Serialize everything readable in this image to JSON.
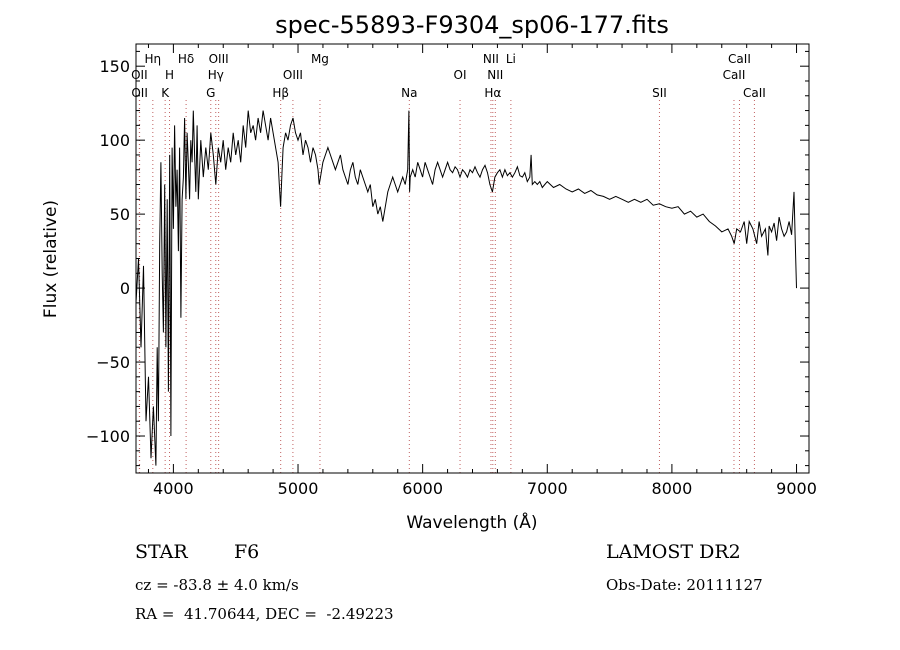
{
  "chart_data": {
    "type": "line",
    "title": "spec-55893-F9304_sp06-177.fits",
    "xlabel": "Wavelength (Å)",
    "ylabel": "Flux (relative)",
    "xlim": [
      3700,
      9100
    ],
    "ylim": [
      -125,
      165
    ],
    "xticks": [
      4000,
      5000,
      6000,
      7000,
      8000,
      9000
    ],
    "yticks": [
      -100,
      -50,
      0,
      50,
      100,
      150
    ],
    "series": [
      {
        "points": [
          [
            3700,
            -10
          ],
          [
            3720,
            20
          ],
          [
            3740,
            -40
          ],
          [
            3760,
            15
          ],
          [
            3780,
            -90
          ],
          [
            3800,
            -60
          ],
          [
            3820,
            -115
          ],
          [
            3840,
            -80
          ],
          [
            3860,
            -120
          ],
          [
            3870,
            -40
          ],
          [
            3880,
            -90
          ],
          [
            3890,
            30
          ],
          [
            3900,
            85
          ],
          [
            3910,
            10
          ],
          [
            3920,
            -30
          ],
          [
            3930,
            70
          ],
          [
            3940,
            -40
          ],
          [
            3950,
            60
          ],
          [
            3960,
            -70
          ],
          [
            3970,
            90
          ],
          [
            3980,
            -100
          ],
          [
            3990,
            95
          ],
          [
            4000,
            40
          ],
          [
            4010,
            110
          ],
          [
            4020,
            55
          ],
          [
            4030,
            80
          ],
          [
            4040,
            25
          ],
          [
            4050,
            95
          ],
          [
            4060,
            -20
          ],
          [
            4070,
            60
          ],
          [
            4080,
            75
          ],
          [
            4090,
            115
          ],
          [
            4100,
            60
          ],
          [
            4110,
            105
          ],
          [
            4120,
            85
          ],
          [
            4130,
            60
          ],
          [
            4140,
            100
          ],
          [
            4150,
            85
          ],
          [
            4160,
            120
          ],
          [
            4170,
            90
          ],
          [
            4180,
            65
          ],
          [
            4190,
            110
          ],
          [
            4200,
            60
          ],
          [
            4220,
            100
          ],
          [
            4240,
            75
          ],
          [
            4260,
            95
          ],
          [
            4280,
            80
          ],
          [
            4300,
            105
          ],
          [
            4320,
            90
          ],
          [
            4340,
            70
          ],
          [
            4360,
            95
          ],
          [
            4380,
            85
          ],
          [
            4400,
            100
          ],
          [
            4420,
            80
          ],
          [
            4440,
            95
          ],
          [
            4460,
            85
          ],
          [
            4480,
            105
          ],
          [
            4500,
            90
          ],
          [
            4520,
            100
          ],
          [
            4540,
            85
          ],
          [
            4560,
            110
          ],
          [
            4580,
            95
          ],
          [
            4600,
            120
          ],
          [
            4620,
            105
          ],
          [
            4640,
            110
          ],
          [
            4660,
            100
          ],
          [
            4680,
            115
          ],
          [
            4700,
            105
          ],
          [
            4720,
            120
          ],
          [
            4740,
            110
          ],
          [
            4760,
            100
          ],
          [
            4780,
            115
          ],
          [
            4800,
            105
          ],
          [
            4820,
            95
          ],
          [
            4840,
            85
          ],
          [
            4850,
            70
          ],
          [
            4860,
            55
          ],
          [
            4870,
            75
          ],
          [
            4880,
            95
          ],
          [
            4900,
            105
          ],
          [
            4920,
            100
          ],
          [
            4940,
            110
          ],
          [
            4960,
            115
          ],
          [
            4980,
            105
          ],
          [
            5000,
            100
          ],
          [
            5020,
            105
          ],
          [
            5040,
            90
          ],
          [
            5060,
            100
          ],
          [
            5080,
            95
          ],
          [
            5100,
            85
          ],
          [
            5120,
            95
          ],
          [
            5140,
            90
          ],
          [
            5160,
            80
          ],
          [
            5170,
            70
          ],
          [
            5180,
            75
          ],
          [
            5200,
            85
          ],
          [
            5220,
            90
          ],
          [
            5240,
            95
          ],
          [
            5260,
            90
          ],
          [
            5280,
            85
          ],
          [
            5300,
            80
          ],
          [
            5320,
            85
          ],
          [
            5340,
            90
          ],
          [
            5360,
            80
          ],
          [
            5380,
            75
          ],
          [
            5400,
            70
          ],
          [
            5420,
            80
          ],
          [
            5440,
            85
          ],
          [
            5460,
            75
          ],
          [
            5480,
            70
          ],
          [
            5500,
            80
          ],
          [
            5520,
            75
          ],
          [
            5540,
            70
          ],
          [
            5560,
            65
          ],
          [
            5580,
            70
          ],
          [
            5600,
            55
          ],
          [
            5620,
            60
          ],
          [
            5640,
            50
          ],
          [
            5660,
            55
          ],
          [
            5680,
            45
          ],
          [
            5700,
            55
          ],
          [
            5720,
            65
          ],
          [
            5740,
            70
          ],
          [
            5760,
            75
          ],
          [
            5780,
            70
          ],
          [
            5800,
            65
          ],
          [
            5820,
            70
          ],
          [
            5840,
            75
          ],
          [
            5860,
            70
          ],
          [
            5880,
            80
          ],
          [
            5890,
            120
          ],
          [
            5895,
            65
          ],
          [
            5900,
            75
          ],
          [
            5920,
            80
          ],
          [
            5940,
            75
          ],
          [
            5960,
            85
          ],
          [
            5980,
            80
          ],
          [
            6000,
            75
          ],
          [
            6020,
            85
          ],
          [
            6040,
            80
          ],
          [
            6060,
            75
          ],
          [
            6080,
            70
          ],
          [
            6100,
            80
          ],
          [
            6120,
            85
          ],
          [
            6140,
            80
          ],
          [
            6160,
            75
          ],
          [
            6180,
            80
          ],
          [
            6200,
            85
          ],
          [
            6220,
            80
          ],
          [
            6240,
            78
          ],
          [
            6260,
            82
          ],
          [
            6280,
            80
          ],
          [
            6300,
            75
          ],
          [
            6320,
            80
          ],
          [
            6340,
            78
          ],
          [
            6360,
            75
          ],
          [
            6380,
            80
          ],
          [
            6400,
            78
          ],
          [
            6420,
            82
          ],
          [
            6440,
            78
          ],
          [
            6460,
            75
          ],
          [
            6480,
            80
          ],
          [
            6500,
            83
          ],
          [
            6520,
            78
          ],
          [
            6540,
            70
          ],
          [
            6560,
            65
          ],
          [
            6580,
            75
          ],
          [
            6600,
            78
          ],
          [
            6620,
            80
          ],
          [
            6640,
            75
          ],
          [
            6660,
            80
          ],
          [
            6680,
            76
          ],
          [
            6700,
            78
          ],
          [
            6720,
            75
          ],
          [
            6740,
            78
          ],
          [
            6760,
            82
          ],
          [
            6780,
            76
          ],
          [
            6800,
            75
          ],
          [
            6820,
            78
          ],
          [
            6840,
            72
          ],
          [
            6860,
            75
          ],
          [
            6870,
            90
          ],
          [
            6880,
            70
          ],
          [
            6900,
            72
          ],
          [
            6920,
            70
          ],
          [
            6940,
            72
          ],
          [
            6960,
            68
          ],
          [
            6980,
            70
          ],
          [
            7000,
            72
          ],
          [
            7050,
            68
          ],
          [
            7100,
            70
          ],
          [
            7150,
            67
          ],
          [
            7200,
            65
          ],
          [
            7250,
            67
          ],
          [
            7300,
            64
          ],
          [
            7350,
            66
          ],
          [
            7400,
            63
          ],
          [
            7450,
            62
          ],
          [
            7500,
            60
          ],
          [
            7550,
            62
          ],
          [
            7600,
            60
          ],
          [
            7650,
            58
          ],
          [
            7700,
            60
          ],
          [
            7750,
            58
          ],
          [
            7800,
            60
          ],
          [
            7850,
            56
          ],
          [
            7900,
            57
          ],
          [
            7950,
            55
          ],
          [
            8000,
            54
          ],
          [
            8050,
            55
          ],
          [
            8100,
            50
          ],
          [
            8150,
            52
          ],
          [
            8200,
            48
          ],
          [
            8250,
            50
          ],
          [
            8300,
            45
          ],
          [
            8350,
            42
          ],
          [
            8400,
            38
          ],
          [
            8450,
            40
          ],
          [
            8480,
            35
          ],
          [
            8500,
            30
          ],
          [
            8520,
            40
          ],
          [
            8550,
            38
          ],
          [
            8580,
            45
          ],
          [
            8600,
            30
          ],
          [
            8620,
            45
          ],
          [
            8650,
            40
          ],
          [
            8680,
            30
          ],
          [
            8700,
            45
          ],
          [
            8720,
            35
          ],
          [
            8750,
            40
          ],
          [
            8770,
            22
          ],
          [
            8780,
            42
          ],
          [
            8800,
            38
          ],
          [
            8820,
            44
          ],
          [
            8840,
            32
          ],
          [
            8860,
            48
          ],
          [
            8880,
            40
          ],
          [
            8900,
            35
          ],
          [
            8920,
            38
          ],
          [
            8940,
            45
          ],
          [
            8960,
            36
          ],
          [
            8980,
            65
          ],
          [
            8990,
            30
          ],
          [
            9000,
            0
          ]
        ]
      }
    ],
    "lines": [
      {
        "x": 3727,
        "label": "OII",
        "row": 2
      },
      {
        "x": 3729,
        "label": "OII",
        "row": 3
      },
      {
        "x": 3835,
        "label": "Hη",
        "row": 1
      },
      {
        "x": 3934,
        "label": "K",
        "row": 3
      },
      {
        "x": 3969,
        "label": "H",
        "row": 2
      },
      {
        "x": 4102,
        "label": "Hδ",
        "row": 1
      },
      {
        "x": 4300,
        "label": "G",
        "row": 3
      },
      {
        "x": 4340,
        "label": "Hγ",
        "row": 2
      },
      {
        "x": 4363,
        "label": "OIII",
        "row": 1
      },
      {
        "x": 4861,
        "label": "Hβ",
        "row": 3
      },
      {
        "x": 4959,
        "label": "OIII",
        "row": 2
      },
      {
        "x": 5176,
        "label": "Mg",
        "row": 1
      },
      {
        "x": 5893,
        "label": "Na",
        "row": 3
      },
      {
        "x": 6300,
        "label": "OI",
        "row": 2
      },
      {
        "x": 6548,
        "label": "NII",
        "row": 1
      },
      {
        "x": 6563,
        "label": "Hα",
        "row": 3
      },
      {
        "x": 6583,
        "label": "NII",
        "row": 2
      },
      {
        "x": 6708,
        "label": "Li",
        "row": 1
      },
      {
        "x": 7900,
        "label": "SII",
        "row": 3
      },
      {
        "x": 8498,
        "label": "CaII",
        "row": 2
      },
      {
        "x": 8542,
        "label": "CaII",
        "row": 1
      },
      {
        "x": 8662,
        "label": "CaII",
        "row": 3
      }
    ]
  },
  "info": {
    "class_label": "STAR",
    "subclass": "F6",
    "survey": "LAMOST DR2",
    "cz": "cz = -83.8 ± 4.0 km/s",
    "obs_date": "Obs-Date: 20111127",
    "coords": "RA =  41.70644, DEC =  -2.49223"
  }
}
